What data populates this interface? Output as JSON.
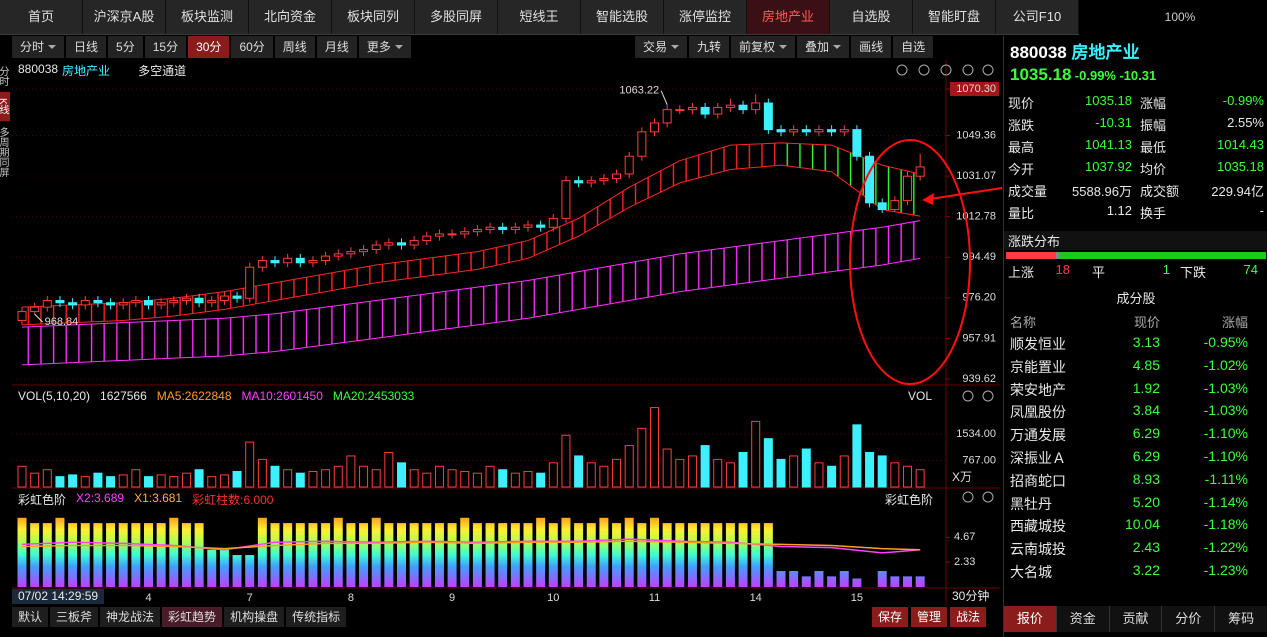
{
  "tabs": {
    "items": [
      "首页",
      "沪深京A股",
      "板块监测",
      "北向资金",
      "板块同列",
      "多股同屏",
      "短线王",
      "智能选股",
      "涨停监控",
      "房地产业",
      "自选股",
      "智能盯盘",
      "公司F10"
    ],
    "active": 9
  },
  "zoom": "100%",
  "side_tabs": {
    "items": [
      "分时",
      "K线",
      "多周期同屏"
    ],
    "active": 1
  },
  "periods": {
    "items": [
      "分时",
      "日线",
      "5分",
      "15分",
      "30分",
      "60分",
      "周线",
      "月线",
      "更多"
    ],
    "active": 4
  },
  "tools": [
    "交易",
    "九转",
    "前复权",
    "叠加",
    "画线",
    "自选"
  ],
  "chart": {
    "type": "candlestick",
    "code": "880038",
    "name": "房地产业",
    "indicator": "多空通道",
    "ylim": [
      939.62,
      1070.3
    ],
    "yticks": [
      {
        "value": 1070.3,
        "label": "1070.30"
      },
      1049.36,
      1031.07,
      1012.78,
      994.49,
      {
        "value": 976.2,
        "label": "976.20"
      },
      957.91,
      939.62
    ],
    "high_mark": 1063.22,
    "low_mark": 968.84,
    "up_color": "#ff3c3c",
    "down_color": "#3cf0ff",
    "dates": [
      null,
      null,
      null,
      null,
      null,
      null,
      null,
      null,
      null,
      null,
      "4",
      null,
      null,
      null,
      null,
      null,
      null,
      null,
      "7",
      null,
      null,
      null,
      null,
      null,
      null,
      null,
      "8",
      null,
      null,
      null,
      null,
      null,
      null,
      null,
      "9",
      null,
      null,
      null,
      null,
      null,
      null,
      null,
      "10",
      null,
      null,
      null,
      null,
      null,
      null,
      null,
      "11",
      null,
      null,
      null,
      null,
      null,
      null,
      null,
      "14",
      null,
      null,
      null,
      null,
      null,
      null,
      null,
      "15",
      null,
      null,
      null,
      null,
      null
    ],
    "open": [
      966,
      970,
      972,
      975,
      974,
      973,
      975,
      974,
      973,
      974,
      975,
      973,
      974,
      975,
      976,
      974,
      975,
      977,
      976,
      990,
      993,
      992,
      994,
      992,
      993,
      995,
      996,
      997,
      998,
      1000,
      1001,
      1000,
      1002,
      1004,
      1005,
      1005,
      1006,
      1007,
      1008,
      1007,
      1008,
      1009,
      1008,
      1012,
      1029,
      1028,
      1029,
      1030,
      1032,
      1040,
      1051,
      1055,
      1061,
      1061,
      1062,
      1059,
      1062,
      1063,
      1061,
      1064,
      1052,
      1051,
      1052,
      1051,
      1052,
      1051,
      1052,
      1040,
      1019,
      1016,
      1020,
      1031
    ],
    "high": [
      972,
      974,
      977,
      977,
      976,
      977,
      977,
      976,
      976,
      977,
      977,
      976,
      977,
      978,
      978,
      977,
      979,
      979,
      992,
      995,
      995,
      996,
      996,
      995,
      997,
      998,
      999,
      1000,
      1002,
      1003,
      1003,
      1004,
      1006,
      1007,
      1007,
      1008,
      1009,
      1010,
      1010,
      1010,
      1011,
      1011,
      1014,
      1031,
      1031,
      1031,
      1032,
      1034,
      1042,
      1053,
      1057,
      1063.22,
      1063,
      1064,
      1064,
      1064,
      1066,
      1065,
      1068,
      1066,
      1054,
      1054,
      1054,
      1054,
      1054,
      1054,
      1054,
      1042,
      1021,
      1022,
      1033,
      1041.13
    ],
    "low": [
      964,
      968.84,
      970,
      972,
      971,
      971,
      972,
      971,
      971,
      972,
      971,
      971,
      972,
      973,
      972,
      972,
      973,
      974,
      974,
      988,
      990,
      990,
      990,
      990,
      991,
      993,
      994,
      995,
      996,
      998,
      998,
      998,
      1000,
      1002,
      1003,
      1003,
      1004,
      1005,
      1005,
      1005,
      1006,
      1006,
      1006,
      1010,
      1026,
      1026,
      1027,
      1028,
      1030,
      1038,
      1049,
      1053,
      1059,
      1059,
      1057,
      1057,
      1060,
      1059,
      1059,
      1050,
      1049,
      1049,
      1049,
      1049,
      1049,
      1049,
      1038,
      1017,
      1014.43,
      1015,
      1018,
      1029
    ],
    "close": [
      970,
      972,
      975,
      974,
      973,
      975,
      974,
      973,
      974,
      975,
      973,
      974,
      975,
      976,
      974,
      975,
      977,
      976,
      990,
      993,
      992,
      994,
      992,
      993,
      995,
      996,
      997,
      998,
      1000,
      1001,
      1000,
      1002,
      1004,
      1005,
      1005,
      1006,
      1007,
      1008,
      1007,
      1008,
      1009,
      1008,
      1012,
      1029,
      1028,
      1029,
      1030,
      1032,
      1040,
      1051,
      1055,
      1061,
      1061,
      1062,
      1059,
      1062,
      1063,
      1061,
      1064,
      1052,
      1051,
      1052,
      1051,
      1052,
      1051,
      1052,
      1040,
      1019,
      1016,
      1020,
      1031,
      1035.18
    ],
    "band_index": [
      0,
      4,
      8,
      12,
      16,
      20,
      24,
      28,
      32,
      36,
      40,
      44,
      48,
      52,
      56,
      60,
      64,
      68,
      71
    ],
    "bands": [
      {
        "upper": [
          972,
          973,
          974,
          976,
          979,
          983,
          987,
          991,
          994,
          997,
          1002,
          1012,
          1026,
          1038,
          1045,
          1046,
          1045,
          1036,
          1032
        ],
        "lower": [
          964,
          965,
          966,
          968,
          971,
          975,
          979,
          983,
          986,
          989,
          994,
          1004,
          1017,
          1028,
          1034,
          1036,
          1033,
          1016,
          1013
        ],
        "color": "#ff2424",
        "fall_color": "#2cff2c"
      },
      {
        "upper": [
          963,
          964,
          965,
          966,
          967,
          969,
          972,
          975,
          978,
          981,
          984,
          988,
          992,
          996,
          999,
          1002,
          1005,
          1008,
          1011
        ],
        "lower": [
          946,
          947,
          948,
          949,
          950,
          952,
          955,
          958,
          961,
          964,
          967,
          971,
          975,
          979,
          982,
          985,
          988,
          991,
          994
        ],
        "color": "#ff30ff"
      }
    ]
  },
  "volume": {
    "title": "VOL(5,10,20)",
    "labels": [
      {
        "text": "1627566",
        "color": "#e8e8e8"
      },
      {
        "text": "MA5:2622848",
        "color": "#ff9a2e"
      },
      {
        "text": "MA10:2601450",
        "color": "#ff40ff"
      },
      {
        "text": "MA20:2453033",
        "color": "#3cff3c"
      }
    ],
    "name": "VOL",
    "unit": "X万",
    "ylim": [
      0,
      2375
    ],
    "yticks": [
      {
        "value": 1534,
        "label": "1534.00"
      },
      {
        "value": 767,
        "label": "767.00"
      }
    ],
    "values": [
      600,
      400,
      500,
      300,
      350,
      300,
      400,
      300,
      350,
      500,
      300,
      350,
      300,
      400,
      500,
      300,
      350,
      450,
      1300,
      800,
      600,
      500,
      400,
      450,
      500,
      600,
      900,
      600,
      500,
      1000,
      700,
      500,
      400,
      600,
      500,
      450,
      400,
      600,
      500,
      400,
      450,
      400,
      700,
      1500,
      900,
      700,
      600,
      800,
      1200,
      1700,
      2300,
      1100,
      800,
      900,
      1200,
      800,
      700,
      1000,
      1900,
      1400,
      800,
      900,
      1100,
      700,
      600,
      900,
      1800,
      1000,
      900,
      700,
      600,
      500
    ]
  },
  "rainbow": {
    "title": "彩虹色阶",
    "labels": [
      {
        "text": "X2:3.689",
        "color": "#ff40ff"
      },
      {
        "text": "X1:3.681",
        "color": "#ffb040"
      },
      {
        "text": "彩虹柱数:6.000",
        "color": "#ff3030"
      }
    ],
    "ylim": [
      0,
      7.7
    ],
    "yticks": [
      4.67,
      2.33
    ],
    "values": [
      6.5,
      6,
      6,
      6.5,
      6,
      6,
      6,
      6,
      6,
      6,
      6,
      6,
      6.5,
      6,
      6,
      3.5,
      3.5,
      3,
      3,
      6.5,
      6,
      6,
      6,
      6,
      6,
      6.5,
      6,
      6,
      6.5,
      6,
      6,
      6,
      6,
      6,
      6,
      6.5,
      6,
      6,
      6,
      6,
      6,
      6.5,
      6,
      6.5,
      6,
      6,
      6.5,
      6,
      6.5,
      6,
      6.5,
      6,
      6,
      6,
      6,
      6,
      6,
      6,
      6,
      6,
      1.5,
      1.5,
      1,
      1.5,
      1,
      1.5,
      0.8,
      0,
      1.5,
      1,
      1,
      1
    ],
    "lines": [
      {
        "color": "#ff40ff",
        "values": [
          4.0,
          4.2,
          4.1,
          3.9,
          3.5,
          4.2,
          4.3,
          4.2,
          4.3,
          4.2,
          4.3,
          4.3,
          4.5,
          4.3,
          4.2,
          3.8,
          3.7,
          3.2,
          3.5
        ]
      },
      {
        "color": "#ffa020",
        "values": [
          3.8,
          3.9,
          3.9,
          3.8,
          3.6,
          3.9,
          4.1,
          4.1,
          4.2,
          4.1,
          4.2,
          4.2,
          4.3,
          4.2,
          4.1,
          4.0,
          3.9,
          3.6,
          3.5
        ]
      }
    ]
  },
  "status": {
    "time": "07/02 14:29:59",
    "period": "30分钟"
  },
  "bottom_tabs": {
    "items": [
      "默认",
      "三板斧",
      "神龙战法",
      "彩虹趋势",
      "机构操盘",
      "传统指标"
    ],
    "active": 3
  },
  "bottom_buttons": [
    "保存",
    "管理",
    "战法"
  ],
  "quote": {
    "code": "880038",
    "name": "房地产业",
    "price": "1035.18",
    "pct": "-0.99%",
    "change": "-10.31",
    "fields": [
      {
        "label": "现价",
        "value": "1035.18",
        "color": "#3cff3c"
      },
      {
        "label": "涨幅",
        "value": "-0.99%",
        "color": "#3cff3c"
      },
      {
        "label": "涨跌",
        "value": "-10.31",
        "color": "#3cff3c"
      },
      {
        "label": "振幅",
        "value": "2.55%",
        "color": "#e8e8e8"
      },
      {
        "label": "最高",
        "value": "1041.13",
        "color": "#3cff3c"
      },
      {
        "label": "最低",
        "value": "1014.43",
        "color": "#3cff3c"
      },
      {
        "label": "今开",
        "value": "1037.92",
        "color": "#3cff3c"
      },
      {
        "label": "均价",
        "value": "1035.18",
        "color": "#3cff3c"
      },
      {
        "label": "成交量",
        "value": "5588.96万",
        "color": "#e8e8e8"
      },
      {
        "label": "成交额",
        "value": "229.94亿",
        "color": "#e8e8e8"
      },
      {
        "label": "量比",
        "value": "1.12",
        "color": "#e8e8e8"
      },
      {
        "label": "换手",
        "value": "-",
        "color": "#e8e8e8"
      }
    ]
  },
  "distribution": {
    "title": "涨跌分布",
    "up_label": "上涨",
    "up": 18,
    "flat_label": "平",
    "flat": 1,
    "down_label": "下跌",
    "down": 74
  },
  "constituents": {
    "title": "成分股",
    "columns": [
      "名称",
      "现价",
      "涨幅"
    ],
    "rows": [
      [
        "顺发恒业",
        "3.13",
        "-0.95%"
      ],
      [
        "京能置业",
        "4.85",
        "-1.02%"
      ],
      [
        "荣安地产",
        "1.92",
        "-1.03%"
      ],
      [
        "凤凰股份",
        "3.84",
        "-1.03%"
      ],
      [
        "万通发展",
        "6.29",
        "-1.10%"
      ],
      [
        "深振业Ａ",
        "6.29",
        "-1.10%"
      ],
      [
        "招商蛇口",
        "8.93",
        "-1.11%"
      ],
      [
        "黑牡丹",
        "5.20",
        "-1.14%"
      ],
      [
        "西藏城投",
        "10.04",
        "-1.18%"
      ],
      [
        "云南城投",
        "2.43",
        "-1.22%"
      ],
      [
        "大名城",
        "3.22",
        "-1.23%"
      ]
    ]
  },
  "panel_tabs": {
    "items": [
      "报价",
      "资金",
      "贡献",
      "分价",
      "筹码"
    ],
    "active": 0
  }
}
